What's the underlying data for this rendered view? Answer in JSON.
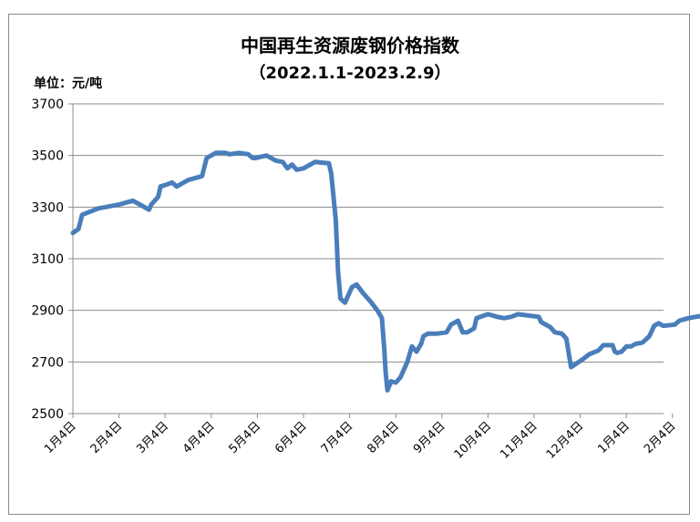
{
  "chart_data": {
    "type": "line",
    "title": "中国再生资源废钢价格指数",
    "subtitle": "（2022.1.1-2023.2.9）",
    "unit_label": "单位：元/吨",
    "ylim": [
      2500,
      3700
    ],
    "y_ticks": [
      "3700",
      "3500",
      "3300",
      "3100",
      "2900",
      "2700",
      "2500"
    ],
    "x_ticks": [
      "1月4日",
      "2月4日",
      "3月4日",
      "4月4日",
      "5月4日",
      "6月4日",
      "7月4日",
      "8月4日",
      "9月4日",
      "10月4日",
      "11月4日",
      "12月4日",
      "1月4日",
      "2月4日"
    ],
    "grid": true,
    "line_color": "#4a7ebb",
    "series": [
      {
        "values": [
          [
            0.0,
            3200
          ],
          [
            0.12,
            3215
          ],
          [
            0.2,
            3270
          ],
          [
            0.55,
            3295
          ],
          [
            1.0,
            3310
          ],
          [
            1.3,
            3325
          ],
          [
            1.45,
            3310
          ],
          [
            1.65,
            3290
          ],
          [
            1.7,
            3310
          ],
          [
            1.85,
            3340
          ],
          [
            1.9,
            3380
          ],
          [
            2.0,
            3385
          ],
          [
            2.15,
            3395
          ],
          [
            2.25,
            3380
          ],
          [
            2.5,
            3405
          ],
          [
            2.8,
            3420
          ],
          [
            2.9,
            3490
          ],
          [
            3.1,
            3510
          ],
          [
            3.3,
            3510
          ],
          [
            3.4,
            3505
          ],
          [
            3.6,
            3510
          ],
          [
            3.8,
            3505
          ],
          [
            3.9,
            3490
          ],
          [
            3.95,
            3490
          ],
          [
            4.2,
            3500
          ],
          [
            4.4,
            3480
          ],
          [
            4.55,
            3475
          ],
          [
            4.65,
            3450
          ],
          [
            4.75,
            3465
          ],
          [
            4.85,
            3445
          ],
          [
            5.0,
            3450
          ],
          [
            5.15,
            3465
          ],
          [
            5.25,
            3475
          ],
          [
            5.55,
            3470
          ],
          [
            5.6,
            3430
          ],
          [
            5.7,
            3250
          ],
          [
            5.75,
            3050
          ],
          [
            5.8,
            2945
          ],
          [
            5.9,
            2930
          ],
          [
            6.05,
            2990
          ],
          [
            6.15,
            3000
          ],
          [
            6.3,
            2965
          ],
          [
            6.45,
            2935
          ],
          [
            6.6,
            2900
          ],
          [
            6.7,
            2870
          ],
          [
            6.75,
            2750
          ],
          [
            6.78,
            2660
          ],
          [
            6.82,
            2590
          ],
          [
            6.9,
            2625
          ],
          [
            7.0,
            2620
          ],
          [
            7.1,
            2640
          ],
          [
            7.25,
            2700
          ],
          [
            7.35,
            2760
          ],
          [
            7.45,
            2740
          ],
          [
            7.55,
            2770
          ],
          [
            7.6,
            2800
          ],
          [
            7.7,
            2810
          ],
          [
            7.9,
            2810
          ],
          [
            8.1,
            2815
          ],
          [
            8.2,
            2845
          ],
          [
            8.35,
            2860
          ],
          [
            8.45,
            2815
          ],
          [
            8.55,
            2815
          ],
          [
            8.7,
            2830
          ],
          [
            8.75,
            2870
          ],
          [
            9.0,
            2885
          ],
          [
            9.2,
            2875
          ],
          [
            9.35,
            2870
          ],
          [
            9.5,
            2875
          ],
          [
            9.65,
            2885
          ],
          [
            10.1,
            2875
          ],
          [
            10.15,
            2855
          ],
          [
            10.35,
            2835
          ],
          [
            10.45,
            2815
          ],
          [
            10.6,
            2810
          ],
          [
            10.7,
            2790
          ],
          [
            10.8,
            2680
          ],
          [
            11.05,
            2710
          ],
          [
            11.2,
            2730
          ],
          [
            11.4,
            2745
          ],
          [
            11.5,
            2765
          ],
          [
            11.6,
            2765
          ],
          [
            11.7,
            2765
          ],
          [
            11.75,
            2740
          ],
          [
            11.8,
            2735
          ],
          [
            11.9,
            2740
          ],
          [
            12.0,
            2760
          ],
          [
            12.1,
            2760
          ],
          [
            12.2,
            2770
          ],
          [
            12.35,
            2775
          ],
          [
            12.5,
            2800
          ],
          [
            12.6,
            2840
          ],
          [
            12.7,
            2850
          ],
          [
            12.8,
            2840
          ],
          [
            13.05,
            2845
          ],
          [
            13.15,
            2860
          ],
          [
            13.35,
            2870
          ],
          [
            13.5,
            2875
          ],
          [
            13.7,
            2880
          ],
          [
            14.15,
            2895
          ],
          [
            14.35,
            2885
          ],
          [
            14.45,
            2890
          ]
        ]
      }
    ]
  }
}
